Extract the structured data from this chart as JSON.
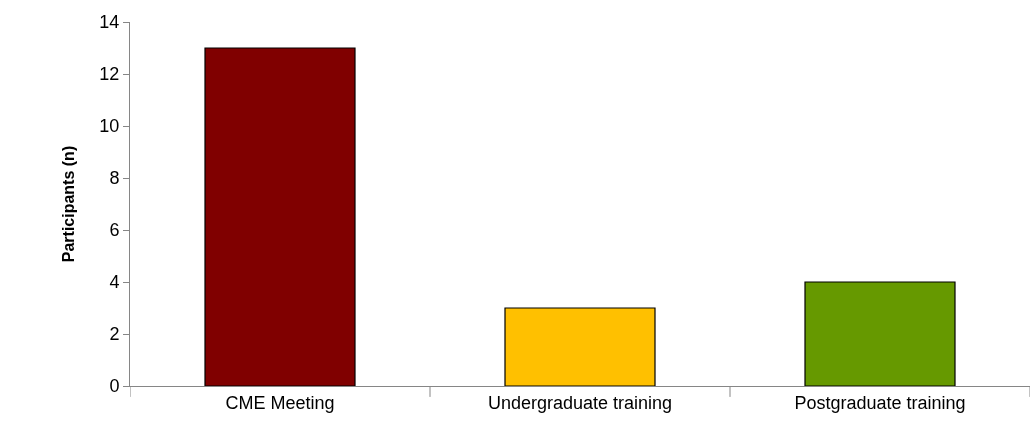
{
  "chart_data": {
    "type": "bar",
    "ylabel": "Participants (n)",
    "categories": [
      "CME Meeting",
      "Undergraduate training",
      "Postgraduate training"
    ],
    "values": [
      13,
      3,
      4
    ],
    "colors": [
      "#800000",
      "#ffc000",
      "#669900"
    ],
    "ylim": [
      0,
      14
    ],
    "yticks": [
      0,
      2,
      4,
      6,
      8,
      10,
      12,
      14
    ]
  }
}
